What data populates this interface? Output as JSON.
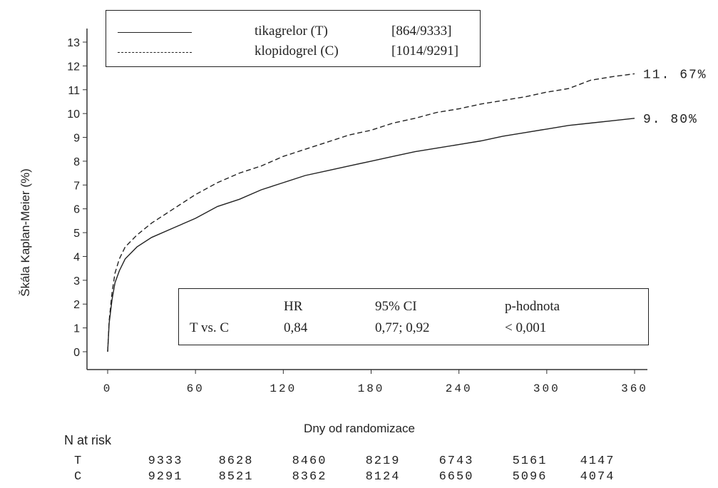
{
  "chart_data": {
    "type": "line",
    "title": "",
    "xlabel": "Dny od randomizace",
    "ylabel": "Škála Kaplan-Meier (%)",
    "xlim": [
      0,
      360
    ],
    "ylim": [
      0,
      13
    ],
    "x_ticks": [
      "0",
      "60",
      "120",
      "180",
      "240",
      "300",
      "360"
    ],
    "y_ticks": [
      "0",
      "1",
      "2",
      "3",
      "4",
      "5",
      "6",
      "7",
      "8",
      "9",
      "10",
      "11",
      "12",
      "13"
    ],
    "grid": false,
    "legend_position": "top-left",
    "series": [
      {
        "name": "tikagrelor (T)",
        "count_label": "[864/9333]",
        "style": "solid",
        "end_label": "9. 80%",
        "points": [
          [
            0,
            0
          ],
          [
            1,
            1.2
          ],
          [
            3,
            2.2
          ],
          [
            5,
            2.9
          ],
          [
            8,
            3.4
          ],
          [
            12,
            3.9
          ],
          [
            20,
            4.4
          ],
          [
            30,
            4.8
          ],
          [
            45,
            5.2
          ],
          [
            60,
            5.6
          ],
          [
            75,
            6.1
          ],
          [
            90,
            6.4
          ],
          [
            105,
            6.8
          ],
          [
            120,
            7.1
          ],
          [
            135,
            7.4
          ],
          [
            150,
            7.6
          ],
          [
            165,
            7.8
          ],
          [
            180,
            8.0
          ],
          [
            195,
            8.2
          ],
          [
            210,
            8.4
          ],
          [
            225,
            8.55
          ],
          [
            240,
            8.7
          ],
          [
            255,
            8.85
          ],
          [
            270,
            9.05
          ],
          [
            285,
            9.2
          ],
          [
            300,
            9.35
          ],
          [
            315,
            9.5
          ],
          [
            330,
            9.6
          ],
          [
            345,
            9.7
          ],
          [
            360,
            9.8
          ]
        ]
      },
      {
        "name": "klopidogrel (C)",
        "count_label": "[1014/9291]",
        "style": "dashed",
        "end_label": "11. 67%",
        "points": [
          [
            0,
            0
          ],
          [
            1,
            1.3
          ],
          [
            3,
            2.5
          ],
          [
            5,
            3.3
          ],
          [
            8,
            3.9
          ],
          [
            12,
            4.4
          ],
          [
            20,
            4.9
          ],
          [
            30,
            5.4
          ],
          [
            45,
            6.0
          ],
          [
            60,
            6.6
          ],
          [
            75,
            7.1
          ],
          [
            90,
            7.5
          ],
          [
            105,
            7.8
          ],
          [
            120,
            8.2
          ],
          [
            135,
            8.5
          ],
          [
            150,
            8.8
          ],
          [
            165,
            9.1
          ],
          [
            180,
            9.3
          ],
          [
            195,
            9.6
          ],
          [
            210,
            9.8
          ],
          [
            225,
            10.05
          ],
          [
            240,
            10.2
          ],
          [
            255,
            10.4
          ],
          [
            270,
            10.55
          ],
          [
            285,
            10.7
          ],
          [
            300,
            10.9
          ],
          [
            315,
            11.05
          ],
          [
            330,
            11.4
          ],
          [
            345,
            11.55
          ],
          [
            360,
            11.67
          ]
        ]
      }
    ],
    "stats": {
      "headers": [
        "HR",
        "95% CI",
        "p-hodnota"
      ],
      "row_label": "T vs. C",
      "values": [
        "0,84",
        "0,77; 0,92",
        "< 0,001"
      ]
    },
    "at_risk": {
      "title": "N at risk",
      "rows": [
        {
          "label": "T",
          "values": [
            "9333",
            "8628",
            "8460",
            "8219",
            "6743",
            "5161",
            "4147"
          ]
        },
        {
          "label": "C",
          "values": [
            "9291",
            "8521",
            "8362",
            "8124",
            "6650",
            "5096",
            "4074"
          ]
        }
      ]
    }
  }
}
